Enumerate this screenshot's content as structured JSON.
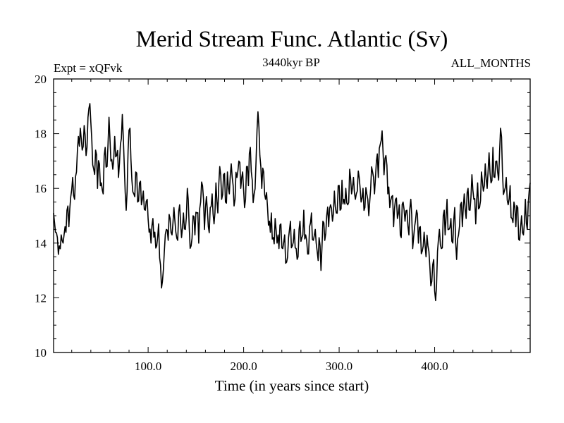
{
  "chart_data": {
    "type": "line",
    "title": "Merid Stream Func. Atlantic (Sv)",
    "subtitle_left": "Expt = xQFvk",
    "subtitle_center": "3440kyr BP",
    "subtitle_right": "ALL_MONTHS",
    "xlabel": "Time (in years since start)",
    "ylabel": "",
    "xlim": [
      1,
      500
    ],
    "ylim": [
      10,
      20
    ],
    "x_major_ticks": [
      100,
      200,
      300,
      400
    ],
    "x_tick_labels": [
      "100.0",
      "200.0",
      "300.0",
      "400.0"
    ],
    "y_major_ticks": [
      10,
      12,
      14,
      16,
      18,
      20
    ],
    "y_tick_labels": [
      "10",
      "12",
      "14",
      "16",
      "18",
      "20"
    ],
    "series": [
      {
        "name": "Merid Stream Func. Atlantic",
        "anchors": [
          [
            1,
            15.1
          ],
          [
            3,
            14.4
          ],
          [
            5,
            14.2
          ],
          [
            7,
            13.9
          ],
          [
            9,
            14.3
          ],
          [
            11,
            14.0
          ],
          [
            13,
            14.6
          ],
          [
            15,
            15.2
          ],
          [
            17,
            14.6
          ],
          [
            19,
            15.7
          ],
          [
            21,
            16.4
          ],
          [
            23,
            15.6
          ],
          [
            25,
            16.6
          ],
          [
            27,
            17.9
          ],
          [
            29,
            18.2
          ],
          [
            31,
            17.4
          ],
          [
            33,
            18.3
          ],
          [
            35,
            17.2
          ],
          [
            37,
            18.6
          ],
          [
            39,
            19.1
          ],
          [
            41,
            17.8
          ],
          [
            43,
            16.7
          ],
          [
            45,
            17.4
          ],
          [
            47,
            16.0
          ],
          [
            49,
            16.9
          ],
          [
            51,
            16.2
          ],
          [
            53,
            15.8
          ],
          [
            55,
            17.5
          ],
          [
            57,
            16.8
          ],
          [
            59,
            18.6
          ],
          [
            61,
            17.0
          ],
          [
            63,
            16.7
          ],
          [
            65,
            17.9
          ],
          [
            67,
            17.2
          ],
          [
            69,
            16.4
          ],
          [
            71,
            17.6
          ],
          [
            73,
            18.7
          ],
          [
            75,
            16.9
          ],
          [
            77,
            15.2
          ],
          [
            79,
            17.4
          ],
          [
            81,
            18.2
          ],
          [
            83,
            16.3
          ],
          [
            85,
            15.8
          ],
          [
            87,
            16.6
          ],
          [
            89,
            15.5
          ],
          [
            91,
            16.2
          ],
          [
            93,
            15.4
          ],
          [
            95,
            15.9
          ],
          [
            97,
            15.2
          ],
          [
            99,
            15.6
          ],
          [
            101,
            14.4
          ],
          [
            103,
            14.0
          ],
          [
            105,
            14.9
          ],
          [
            107,
            14.4
          ],
          [
            109,
            13.9
          ],
          [
            111,
            14.7
          ],
          [
            113,
            13.2
          ],
          [
            115,
            12.6
          ],
          [
            117,
            13.7
          ],
          [
            119,
            14.5
          ],
          [
            121,
            14.1
          ],
          [
            123,
            14.9
          ],
          [
            125,
            14.3
          ],
          [
            127,
            15.3
          ],
          [
            129,
            14.4
          ],
          [
            131,
            14.1
          ],
          [
            133,
            15.4
          ],
          [
            135,
            14.2
          ],
          [
            137,
            15.1
          ],
          [
            139,
            14.5
          ],
          [
            141,
            16.0
          ],
          [
            143,
            14.6
          ],
          [
            145,
            13.9
          ],
          [
            147,
            15.0
          ],
          [
            149,
            14.3
          ],
          [
            151,
            15.1
          ],
          [
            153,
            14.0
          ],
          [
            155,
            15.5
          ],
          [
            157,
            16.1
          ],
          [
            159,
            14.5
          ],
          [
            161,
            15.7
          ],
          [
            163,
            14.6
          ],
          [
            165,
            15.3
          ],
          [
            167,
            15.8
          ],
          [
            169,
            14.7
          ],
          [
            171,
            16.2
          ],
          [
            173,
            15.1
          ],
          [
            175,
            16.8
          ],
          [
            177,
            15.6
          ],
          [
            179,
            16.5
          ],
          [
            181,
            15.5
          ],
          [
            183,
            16.6
          ],
          [
            185,
            15.8
          ],
          [
            187,
            16.9
          ],
          [
            189,
            16.1
          ],
          [
            191,
            15.6
          ],
          [
            193,
            16.4
          ],
          [
            195,
            17.0
          ],
          [
            197,
            16.0
          ],
          [
            199,
            16.6
          ],
          [
            201,
            15.3
          ],
          [
            203,
            16.8
          ],
          [
            205,
            16.1
          ],
          [
            207,
            17.5
          ],
          [
            209,
            16.3
          ],
          [
            211,
            15.8
          ],
          [
            213,
            17.0
          ],
          [
            215,
            18.8
          ],
          [
            217,
            17.2
          ],
          [
            219,
            16.0
          ],
          [
            221,
            16.6
          ],
          [
            223,
            15.6
          ],
          [
            225,
            15.3
          ],
          [
            227,
            14.8
          ],
          [
            229,
            15.1
          ],
          [
            231,
            14.2
          ],
          [
            233,
            14.9
          ],
          [
            235,
            14.0
          ],
          [
            237,
            13.8
          ],
          [
            239,
            14.7
          ],
          [
            241,
            13.8
          ],
          [
            243,
            14.3
          ],
          [
            245,
            13.3
          ],
          [
            247,
            14.2
          ],
          [
            249,
            14.8
          ],
          [
            251,
            13.9
          ],
          [
            253,
            14.5
          ],
          [
            255,
            13.8
          ],
          [
            257,
            13.5
          ],
          [
            259,
            14.8
          ],
          [
            261,
            14.2
          ],
          [
            263,
            15.2
          ],
          [
            265,
            14.3
          ],
          [
            267,
            13.6
          ],
          [
            269,
            14.6
          ],
          [
            271,
            15.1
          ],
          [
            273,
            14.1
          ],
          [
            275,
            14.5
          ],
          [
            277,
            13.7
          ],
          [
            279,
            14.2
          ],
          [
            281,
            13.0
          ],
          [
            283,
            14.8
          ],
          [
            285,
            14.1
          ],
          [
            287,
            15.0
          ],
          [
            289,
            14.6
          ],
          [
            291,
            15.4
          ],
          [
            293,
            14.8
          ],
          [
            295,
            15.9
          ],
          [
            297,
            15.1
          ],
          [
            299,
            16.1
          ],
          [
            301,
            15.2
          ],
          [
            303,
            16.3
          ],
          [
            305,
            15.6
          ],
          [
            307,
            16.0
          ],
          [
            309,
            15.4
          ],
          [
            311,
            16.7
          ],
          [
            313,
            15.8
          ],
          [
            315,
            16.4
          ],
          [
            317,
            15.6
          ],
          [
            319,
            15.9
          ],
          [
            321,
            16.4
          ],
          [
            323,
            15.5
          ],
          [
            325,
            16.0
          ],
          [
            327,
            15.3
          ],
          [
            329,
            15.8
          ],
          [
            331,
            15.0
          ],
          [
            333,
            16.0
          ],
          [
            335,
            16.6
          ],
          [
            337,
            15.8
          ],
          [
            339,
            17.0
          ],
          [
            341,
            16.4
          ],
          [
            343,
            17.6
          ],
          [
            345,
            18.1
          ],
          [
            347,
            16.5
          ],
          [
            349,
            17.2
          ],
          [
            351,
            15.8
          ],
          [
            353,
            15.3
          ],
          [
            355,
            15.7
          ],
          [
            357,
            14.6
          ],
          [
            359,
            15.6
          ],
          [
            361,
            14.9
          ],
          [
            363,
            15.4
          ],
          [
            365,
            14.2
          ],
          [
            367,
            15.5
          ],
          [
            369,
            14.8
          ],
          [
            371,
            15.2
          ],
          [
            373,
            14.3
          ],
          [
            375,
            15.6
          ],
          [
            377,
            13.8
          ],
          [
            379,
            14.6
          ],
          [
            381,
            15.2
          ],
          [
            383,
            14.0
          ],
          [
            385,
            14.6
          ],
          [
            387,
            13.7
          ],
          [
            389,
            14.4
          ],
          [
            391,
            13.5
          ],
          [
            393,
            13.9
          ],
          [
            395,
            13.1
          ],
          [
            397,
            12.6
          ],
          [
            399,
            13.4
          ],
          [
            401,
            11.9
          ],
          [
            403,
            13.7
          ],
          [
            405,
            14.5
          ],
          [
            407,
            13.8
          ],
          [
            409,
            15.0
          ],
          [
            411,
            14.3
          ],
          [
            413,
            15.6
          ],
          [
            415,
            14.5
          ],
          [
            417,
            14.9
          ],
          [
            419,
            14.0
          ],
          [
            421,
            15.3
          ],
          [
            423,
            13.4
          ],
          [
            425,
            14.3
          ],
          [
            427,
            15.4
          ],
          [
            429,
            14.6
          ],
          [
            431,
            15.8
          ],
          [
            433,
            14.9
          ],
          [
            435,
            16.0
          ],
          [
            437,
            15.2
          ],
          [
            439,
            16.5
          ],
          [
            441,
            15.6
          ],
          [
            443,
            14.7
          ],
          [
            445,
            16.2
          ],
          [
            447,
            15.3
          ],
          [
            449,
            16.6
          ],
          [
            451,
            15.9
          ],
          [
            453,
            16.9
          ],
          [
            455,
            16.0
          ],
          [
            457,
            17.3
          ],
          [
            459,
            16.2
          ],
          [
            461,
            17.5
          ],
          [
            463,
            16.4
          ],
          [
            465,
            17.0
          ],
          [
            467,
            16.3
          ],
          [
            469,
            18.2
          ],
          [
            471,
            16.6
          ],
          [
            473,
            15.9
          ],
          [
            475,
            16.4
          ],
          [
            477,
            15.4
          ],
          [
            479,
            16.1
          ],
          [
            481,
            14.9
          ],
          [
            483,
            15.5
          ],
          [
            485,
            14.6
          ],
          [
            487,
            15.3
          ],
          [
            489,
            14.1
          ],
          [
            491,
            15.0
          ],
          [
            493,
            14.3
          ],
          [
            495,
            15.6
          ],
          [
            497,
            14.5
          ],
          [
            499,
            15.9
          ],
          [
            500,
            16.2
          ]
        ]
      }
    ]
  }
}
